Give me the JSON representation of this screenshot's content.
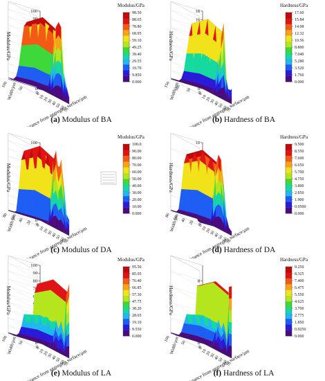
{
  "chart_data": [
    {
      "type": "surface3d",
      "panel_label": "(a)",
      "caption": "Modulus of BA",
      "zlabel": "Modulus/GPa",
      "xlabel": "Distance from aggregate surface/μm",
      "ylabel": "Width/μm",
      "zlim": [
        0,
        100
      ],
      "z_ticks": [
        "0",
        "10",
        "20",
        "30",
        "40",
        "50",
        "60",
        "70",
        "80",
        "90",
        "100"
      ],
      "x_ticks": [
        "0",
        "10",
        "20",
        "30",
        "40",
        "50",
        "60",
        "70"
      ],
      "y_ticks": [
        "0",
        "50",
        "100"
      ],
      "colorbar_title": "Modulus/GPa",
      "colorbar_ticks": [
        "98.50",
        "88.65",
        "78.80",
        "68.95",
        "59.10",
        "49.25",
        "39.40",
        "29.55",
        "19.70",
        "9.850",
        "0.000"
      ],
      "profile": [
        2,
        2,
        4,
        10,
        28,
        60,
        90,
        98,
        93,
        35,
        20,
        8
      ],
      "legend_box": false
    },
    {
      "type": "surface3d",
      "panel_label": "(b)",
      "caption": "Hardness of BA",
      "zlabel": "Hardness/GPa",
      "xlabel": "Distance from aggregate surface/μm",
      "ylabel": "Width/μm",
      "zlim": [
        0,
        18
      ],
      "z_ticks": [
        "0",
        "2",
        "4",
        "6",
        "8",
        "10",
        "12",
        "14",
        "16",
        "18"
      ],
      "x_ticks": [
        "0",
        "10",
        "20",
        "30",
        "40",
        "50",
        "60",
        "70"
      ],
      "y_ticks": [
        "0",
        "50",
        "100",
        "150"
      ],
      "colorbar_title": "Hardness/GPa",
      "colorbar_ticks": [
        "17.60",
        "15.84",
        "14.08",
        "12.32",
        "10.56",
        "8.800",
        "7.040",
        "5.280",
        "3.520",
        "1.760",
        "0.000"
      ],
      "profile": [
        0.2,
        0.2,
        0.3,
        0.6,
        1.5,
        4,
        9,
        14,
        17.6,
        5,
        2,
        3.5
      ],
      "legend_box": false
    },
    {
      "type": "surface3d",
      "panel_label": "(c)",
      "caption": "Modulus of DA",
      "zlabel": "Modulus/GPa",
      "xlabel": "Distance from aggregate surface/μm",
      "ylabel": "Width/μm",
      "zlim": [
        0,
        100
      ],
      "z_ticks": [
        "0",
        "10",
        "20",
        "30",
        "40",
        "50",
        "60",
        "70",
        "80",
        "90",
        "100"
      ],
      "x_ticks": [
        "0",
        "10",
        "20",
        "30",
        "40",
        "50",
        "60",
        "70"
      ],
      "y_ticks": [
        "0",
        "20",
        "40",
        "60",
        "80"
      ],
      "colorbar_title": "Modulus/GPa",
      "colorbar_ticks": [
        "100.0",
        "90.00",
        "80.00",
        "70.00",
        "60.00",
        "50.00",
        "40.00",
        "30.00",
        "20.00",
        "10.00",
        "0.000"
      ],
      "profile": [
        1,
        1,
        2,
        5,
        40,
        85,
        100,
        75,
        92,
        60,
        25,
        20
      ],
      "legend_box": true
    },
    {
      "type": "surface3d",
      "panel_label": "(d)",
      "caption": "Hardness of DA",
      "zlabel": "Hardness/GPa",
      "xlabel": "Distance from aggregate surface/μm",
      "ylabel": "Width/μm",
      "zlim": [
        0,
        10
      ],
      "z_ticks": [
        "0",
        "2",
        "4",
        "6",
        "8",
        "10"
      ],
      "x_ticks": [
        "0",
        "10",
        "20",
        "30",
        "40",
        "50",
        "60",
        "70"
      ],
      "y_ticks": [
        "0",
        "20",
        "40",
        "60",
        "80"
      ],
      "colorbar_title": "Hardness/GPa",
      "colorbar_ticks": [
        "9.500",
        "8.550",
        "7.600",
        "6.650",
        "5.700",
        "4.750",
        "3.800",
        "2.850",
        "1.900",
        "0.9500",
        "0.000"
      ],
      "profile": [
        0.1,
        0.1,
        0.2,
        0.8,
        4,
        8,
        9.5,
        9,
        6,
        2,
        0.8,
        0.5
      ],
      "legend_box": false
    },
    {
      "type": "surface3d",
      "panel_label": "(e)",
      "caption": "Modulus of LA",
      "zlabel": "Modulus/GPa",
      "xlabel": "Distance from aggregate surface/μm",
      "ylabel": "Width/μm",
      "zlim": [
        0,
        100
      ],
      "z_ticks": [
        "0",
        "10",
        "20",
        "30",
        "40",
        "50",
        "60",
        "70",
        "80",
        "90",
        "100"
      ],
      "x_ticks": [
        "0",
        "10",
        "20",
        "30",
        "40",
        "50",
        "60",
        "70"
      ],
      "y_ticks": [
        "0",
        "50",
        "100"
      ],
      "colorbar_title": "Modulus/GPa",
      "colorbar_ticks": [
        "95.50",
        "85.95",
        "76.40",
        "66.85",
        "57.30",
        "47.75",
        "38.20",
        "28.65",
        "19.10",
        "9.550",
        "0.000"
      ],
      "profile": [
        1,
        1,
        1,
        3,
        8,
        20,
        40,
        30,
        42,
        25,
        80,
        95
      ],
      "legend_box": false
    },
    {
      "type": "surface3d",
      "panel_label": "(f)",
      "caption": "Hardness of LA",
      "zlabel": "Hardness/GPa",
      "xlabel": "Distance from aggregate surface/μm",
      "ylabel": "Width/μm",
      "zlim": [
        0,
        10
      ],
      "z_ticks": [
        "0",
        "2",
        "4",
        "6",
        "8"
      ],
      "x_ticks": [
        "0",
        "10",
        "20",
        "30",
        "40",
        "50",
        "60",
        "70"
      ],
      "y_ticks": [
        "0",
        "50",
        "100"
      ],
      "colorbar_title": "Hardness/GPa",
      "colorbar_ticks": [
        "9.250",
        "8.325",
        "7.400",
        "6.475",
        "5.550",
        "4.625",
        "3.700",
        "2.775",
        "1.850",
        "0.9250",
        "0.000"
      ],
      "profile": [
        0.1,
        0.1,
        0.1,
        0.3,
        1,
        2.5,
        4,
        3,
        4,
        2.5,
        9,
        9.25
      ],
      "legend_box": false
    }
  ],
  "colormap": [
    "#4b0a7e",
    "#2a1bd8",
    "#1f5ef2",
    "#21b8f0",
    "#16d9a0",
    "#3fd83a",
    "#b5e51c",
    "#f2e21a",
    "#f7a21a",
    "#f25a16",
    "#e01414",
    "#c10a0a"
  ]
}
